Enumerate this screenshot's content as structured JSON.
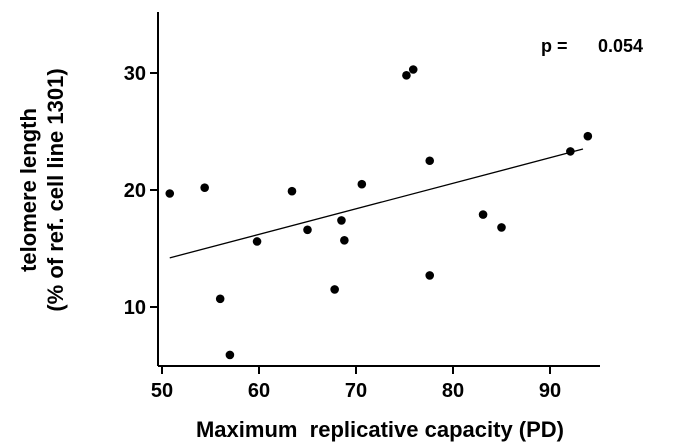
{
  "chart_data": {
    "type": "scatter",
    "title": "",
    "xlabel": "Maximum  replicative capacity (PD)",
    "ylabel_lines": [
      "telomere length",
      "(% of ref. cell line 1301)"
    ],
    "xlim": [
      50,
      95
    ],
    "ylim": [
      5,
      35
    ],
    "x_ticks": [
      50,
      60,
      70,
      80,
      90
    ],
    "y_ticks": [
      10,
      20,
      30
    ],
    "grid": false,
    "annotation": {
      "p_label": "p =",
      "p_value": "0.054"
    },
    "points": [
      {
        "x": 50.8,
        "y": 19.7
      },
      {
        "x": 54.4,
        "y": 20.2
      },
      {
        "x": 56.0,
        "y": 10.7
      },
      {
        "x": 57.0,
        "y": 5.9
      },
      {
        "x": 59.8,
        "y": 15.6
      },
      {
        "x": 63.4,
        "y": 19.9
      },
      {
        "x": 65.0,
        "y": 16.6
      },
      {
        "x": 67.8,
        "y": 11.5
      },
      {
        "x": 68.5,
        "y": 17.4
      },
      {
        "x": 68.8,
        "y": 15.7
      },
      {
        "x": 70.6,
        "y": 20.5
      },
      {
        "x": 75.2,
        "y": 29.8
      },
      {
        "x": 75.9,
        "y": 30.3
      },
      {
        "x": 77.6,
        "y": 22.5
      },
      {
        "x": 77.6,
        "y": 12.7
      },
      {
        "x": 83.1,
        "y": 17.9
      },
      {
        "x": 85.0,
        "y": 16.8
      },
      {
        "x": 92.1,
        "y": 23.3
      },
      {
        "x": 93.9,
        "y": 24.6
      }
    ],
    "regression_line": {
      "x": [
        50.8,
        93.4
      ],
      "y": [
        14.2,
        23.5
      ]
    },
    "colors": {
      "points": "#000000",
      "line": "#000000",
      "axes": "#000000"
    }
  }
}
